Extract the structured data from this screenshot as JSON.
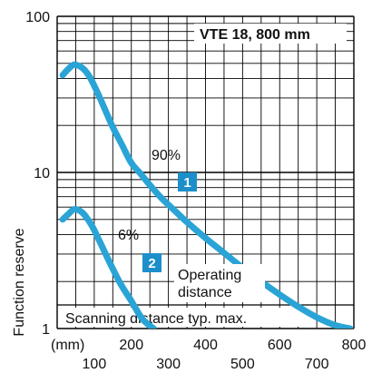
{
  "chart_data": {
    "type": "line",
    "title": "VTE 18, 800 mm",
    "ylabel": "Function reserve",
    "x_unit_label": "(mm)",
    "xlim": [
      0,
      800
    ],
    "ylim": [
      1,
      100
    ],
    "y_scale": "log",
    "grid": true,
    "x_ticks_upper": [
      {
        "v": 200,
        "label": "200"
      },
      {
        "v": 400,
        "label": "400"
      },
      {
        "v": 600,
        "label": "600"
      },
      {
        "v": 800,
        "label": "800"
      }
    ],
    "x_ticks_lower": [
      {
        "v": 100,
        "label": "100"
      },
      {
        "v": 300,
        "label": "300"
      },
      {
        "v": 500,
        "label": "500"
      },
      {
        "v": 700,
        "label": "700"
      }
    ],
    "y_ticks": [
      {
        "v": 1,
        "label": "1"
      },
      {
        "v": 10,
        "label": "10"
      },
      {
        "v": 100,
        "label": "100"
      }
    ],
    "series": [
      {
        "name": "90%",
        "badge": "1",
        "x": [
          15,
          30,
          45,
          60,
          75,
          90,
          110,
          130,
          150,
          175,
          200,
          225,
          250,
          280,
          310,
          350,
          400,
          450,
          500,
          550,
          600,
          650,
          700,
          750,
          790
        ],
        "values": [
          42,
          46,
          49,
          48,
          45,
          40,
          32,
          25,
          19.5,
          15,
          11.5,
          9.8,
          8.3,
          6.9,
          5.9,
          4.8,
          3.8,
          3.05,
          2.45,
          2.0,
          1.65,
          1.38,
          1.18,
          1.05,
          1.0
        ]
      },
      {
        "name": "6%",
        "badge": "2",
        "x": [
          15,
          30,
          45,
          60,
          75,
          95,
          115,
          140,
          170,
          200,
          230,
          260
        ],
        "values": [
          5.0,
          5.4,
          5.8,
          5.7,
          5.3,
          4.5,
          3.6,
          2.7,
          1.95,
          1.5,
          1.15,
          1.0
        ]
      }
    ],
    "annotations": {
      "operating_distance": "Operating distance",
      "scanning_distance": "Scanning distance typ. max."
    },
    "colors": {
      "curve": "#2aa4d6",
      "badge": "#1c8fca",
      "grid": "#000000"
    }
  }
}
